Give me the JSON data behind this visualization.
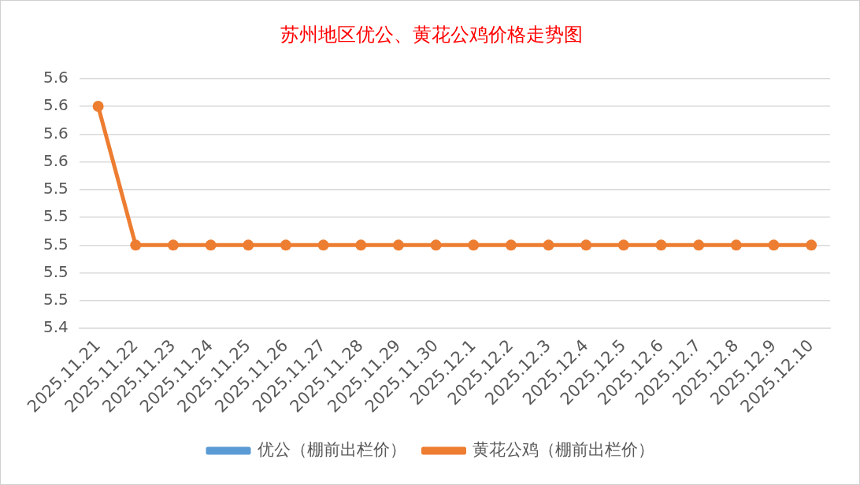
{
  "chart_data": {
    "type": "line",
    "title": "苏州地区优公、黄花公鸡价格走势图",
    "categories": [
      "2025.11.21",
      "2025.11.22",
      "2025.11.23",
      "2025.11.24",
      "2025.11.25",
      "2025.11.26",
      "2025.11.27",
      "2025.11.28",
      "2025.11.29",
      "2025.11.30",
      "2025.12.1",
      "2025.12.2",
      "2025.12.3",
      "2025.12.4",
      "2025.12.5",
      "2025.12.6",
      "2025.12.7",
      "2025.12.8",
      "2025.12.9",
      "2025.12.10"
    ],
    "series": [
      {
        "name": "优公（棚前出栏价）",
        "color": "#5b9bd5",
        "values": [
          null,
          null,
          null,
          null,
          null,
          null,
          null,
          null,
          null,
          null,
          null,
          null,
          null,
          null,
          null,
          null,
          null,
          null,
          null,
          null
        ]
      },
      {
        "name": "黄花公鸡（棚前出栏价）",
        "color": "#ed7d31",
        "values": [
          5.6,
          5.5,
          5.5,
          5.5,
          5.5,
          5.5,
          5.5,
          5.5,
          5.5,
          5.5,
          5.5,
          5.5,
          5.5,
          5.5,
          5.5,
          5.5,
          5.5,
          5.5,
          5.5,
          5.5
        ]
      }
    ],
    "ylim": [
      5.44,
      5.62
    ],
    "yticks": [
      {
        "value": 5.44,
        "label": "5.4"
      },
      {
        "value": 5.46,
        "label": "5.5"
      },
      {
        "value": 5.48,
        "label": "5.5"
      },
      {
        "value": 5.5,
        "label": "5.5"
      },
      {
        "value": 5.52,
        "label": "5.5"
      },
      {
        "value": 5.54,
        "label": "5.5"
      },
      {
        "value": 5.56,
        "label": "5.6"
      },
      {
        "value": 5.58,
        "label": "5.6"
      },
      {
        "value": 5.6,
        "label": "5.6"
      },
      {
        "value": 5.62,
        "label": "5.6"
      }
    ],
    "grid": "y",
    "legend": "bottom",
    "marker": "circle",
    "line_style": "solid"
  }
}
